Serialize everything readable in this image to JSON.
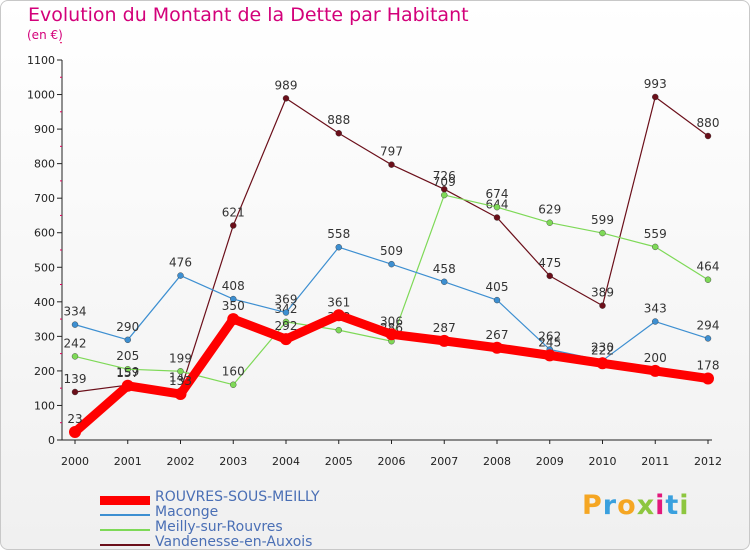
{
  "title": "Evolution du Montant de la Dette par Habitant",
  "subtitle": "(en €)",
  "logo": {
    "letters": [
      "P",
      "r",
      "o",
      "x",
      "i",
      "t",
      "i"
    ],
    "colors": [
      "#f5a623",
      "#3aa0de",
      "#f5a623",
      "#8dc63f",
      "#e2187c",
      "#3aa0de",
      "#8dc63f"
    ]
  },
  "chart_data": {
    "type": "line",
    "x": [
      "2000",
      "2001",
      "2002",
      "2003",
      "2004",
      "2005",
      "2006",
      "2007",
      "2008",
      "2009",
      "2010",
      "2011",
      "2012"
    ],
    "ylim": [
      0,
      1100
    ],
    "yticks": [
      0,
      100,
      200,
      300,
      400,
      500,
      600,
      700,
      800,
      900,
      1000,
      1100
    ],
    "grid": false,
    "legend": "bottom-left",
    "series": [
      {
        "name": "ROUVRES-SOUS-MEILLY",
        "color": "#ff0000",
        "values": [
          23,
          157,
          133,
          350,
          292,
          361,
          306,
          287,
          267,
          245,
          222,
          200,
          178
        ]
      },
      {
        "name": "Maconge",
        "color": "#3d8fd1",
        "values": [
          334,
          290,
          476,
          408,
          369,
          558,
          509,
          458,
          405,
          262,
          230,
          343,
          294
        ]
      },
      {
        "name": "Meilly-sur-Rouvres",
        "color": "#7ed957",
        "values": [
          242,
          205,
          199,
          160,
          342,
          318,
          286,
          709,
          674,
          629,
          599,
          559,
          464
        ]
      },
      {
        "name": "Vandenesse-en-Auxois",
        "color": "#6b0f1a",
        "values": [
          139,
          159,
          143,
          621,
          989,
          888,
          797,
          726,
          644,
          475,
          389,
          993,
          880
        ]
      }
    ]
  }
}
